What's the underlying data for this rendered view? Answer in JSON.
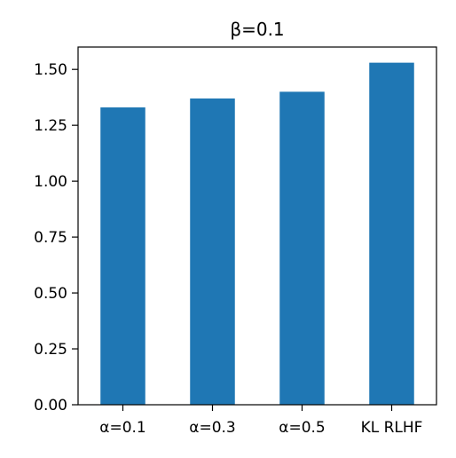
{
  "chart_data": {
    "type": "bar",
    "title": "β=0.1",
    "xlabel": "",
    "ylabel": "",
    "categories": [
      "α=0.1",
      "α=0.3",
      "α=0.5",
      "KL RLHF"
    ],
    "values": [
      1.33,
      1.37,
      1.4,
      1.53
    ],
    "ylim": [
      0,
      1.6
    ],
    "yticks": [
      "0.00",
      "0.25",
      "0.50",
      "0.75",
      "1.00",
      "1.25",
      "1.50"
    ],
    "bar_color": "#1f77b4",
    "grid": false,
    "legend": "none"
  }
}
